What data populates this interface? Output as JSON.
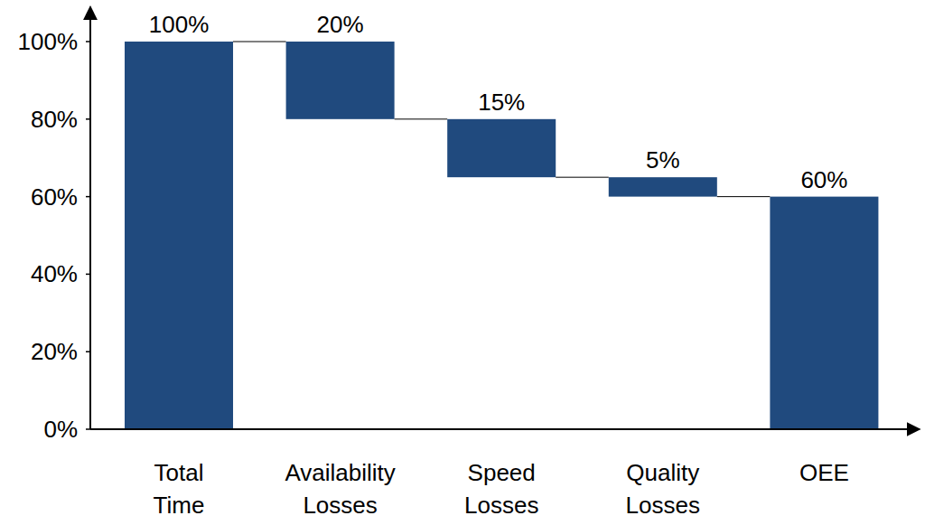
{
  "chart_data": {
    "type": "waterfall",
    "categories": [
      "Total Time",
      "Availability Losses",
      "Speed Losses",
      "Quality Losses",
      "OEE"
    ],
    "values": [
      100,
      20,
      15,
      5,
      60
    ],
    "value_labels": [
      "100%",
      "20%",
      "15%",
      "5%",
      "60%"
    ],
    "color": "#204a7e",
    "ylim": [
      0,
      108
    ],
    "yticks": [
      {
        "value": 0,
        "label": "0%"
      },
      {
        "value": 20,
        "label": "20%"
      },
      {
        "value": 40,
        "label": "40%"
      },
      {
        "value": 60,
        "label": "60%"
      },
      {
        "value": 80,
        "label": "80%"
      },
      {
        "value": 100,
        "label": "100%"
      }
    ],
    "grid": false,
    "data_labels": true
  }
}
